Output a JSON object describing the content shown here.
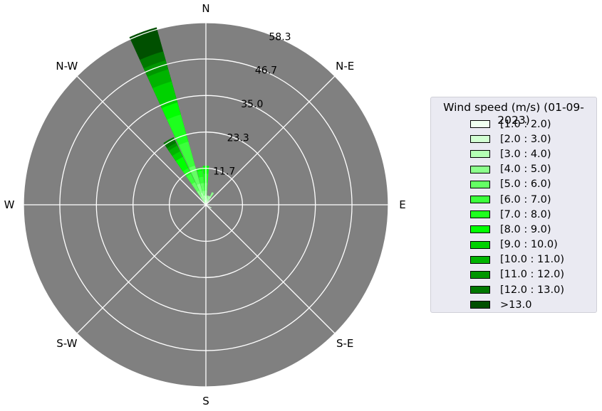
{
  "chart_data": {
    "type": "windrose",
    "direction_labels": [
      "N",
      "N-E",
      "E",
      "S-E",
      "S",
      "S-W",
      "W",
      "N-W"
    ],
    "radial_ticks": [
      11.7,
      23.3,
      35.0,
      46.7,
      58.3
    ],
    "rmax": 58.3,
    "background_color": "#808080",
    "grid": true,
    "legend": {
      "title": "Wind speed (m/s) (01-09-2023)",
      "placement": "right",
      "bins": [
        "[1.0 : 2.0)",
        "[2.0 : 3.0)",
        "[3.0 : 4.0)",
        "[4.0 : 5.0)",
        "[5.0 : 6.0)",
        "[6.0 : 7.0)",
        "[7.0 : 8.0)",
        "[8.0 : 9.0)",
        "[9.0 : 10.0)",
        "[10.0 : 11.0)",
        "[11.0 : 12.0)",
        "[12.0 : 13.0)",
        ">13.0"
      ],
      "colors": [
        "#f0fff0",
        "#d2ffd2",
        "#b4ffb4",
        "#8cff8c",
        "#64ff64",
        "#3cff3c",
        "#1eff1e",
        "#00ff00",
        "#00d200",
        "#00b400",
        "#009600",
        "#007800",
        "#005000"
      ]
    },
    "series": [
      {
        "direction": 120,
        "cumulative": [
          1.5,
          2.0
        ]
      },
      {
        "direction": 330,
        "cumulative": [
          0,
          1,
          3,
          5,
          8,
          11,
          13,
          17,
          19,
          21,
          22,
          24
        ]
      },
      {
        "direction": 340,
        "cumulative": [
          0.5,
          1.5,
          4,
          7,
          13,
          21,
          30,
          34,
          41,
          45,
          48,
          51,
          59
        ]
      },
      {
        "direction": 350,
        "cumulative": [
          0.5,
          1.5,
          3,
          4.5,
          7,
          9,
          11,
          12
        ]
      },
      {
        "direction": 0,
        "cumulative": [
          0.5,
          1.5,
          2.5,
          3.5,
          4.5,
          7,
          10,
          12.5
        ]
      },
      {
        "direction": 10,
        "cumulative": [
          0.5,
          1,
          2,
          3
        ]
      },
      {
        "direction": 20,
        "cumulative": [
          0.5,
          1.5,
          3
        ]
      },
      {
        "direction": 30,
        "cumulative": [
          0.5,
          1.5,
          3,
          4.5
        ]
      }
    ]
  }
}
